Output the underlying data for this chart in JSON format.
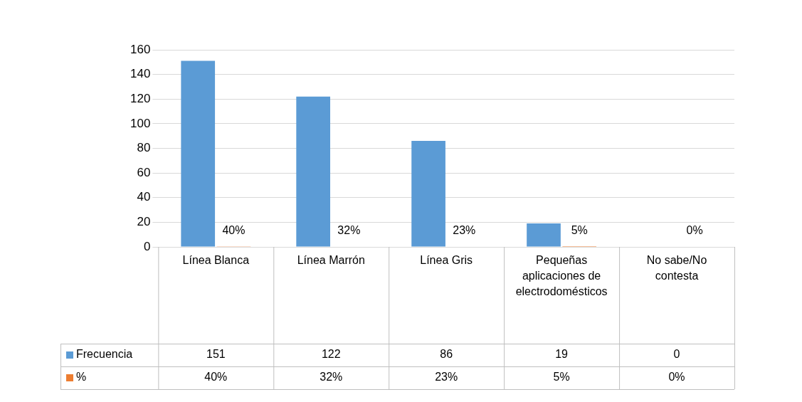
{
  "chart_data": {
    "type": "bar",
    "categories": [
      "Línea Blanca",
      "Línea Marrón",
      "Línea Gris",
      "Pequeñas aplicaciones de electrodomésticos",
      "No sabe/No contesta"
    ],
    "series": [
      {
        "name": "Frecuencia",
        "color": "#5b9bd5",
        "values": [
          151,
          122,
          86,
          19,
          0
        ]
      },
      {
        "name": "%",
        "color": "#ed7d31",
        "values": [
          0.4,
          0.32,
          0.23,
          0.05,
          0
        ],
        "value_labels": [
          "40%",
          "32%",
          "23%",
          "5%",
          "0%"
        ]
      }
    ],
    "legend": "bottom left",
    "data_labels": true,
    "ylim": [
      0,
      160
    ],
    "yticks": [
      0,
      20,
      40,
      60,
      80,
      100,
      120,
      140,
      160
    ],
    "grid": "y"
  }
}
